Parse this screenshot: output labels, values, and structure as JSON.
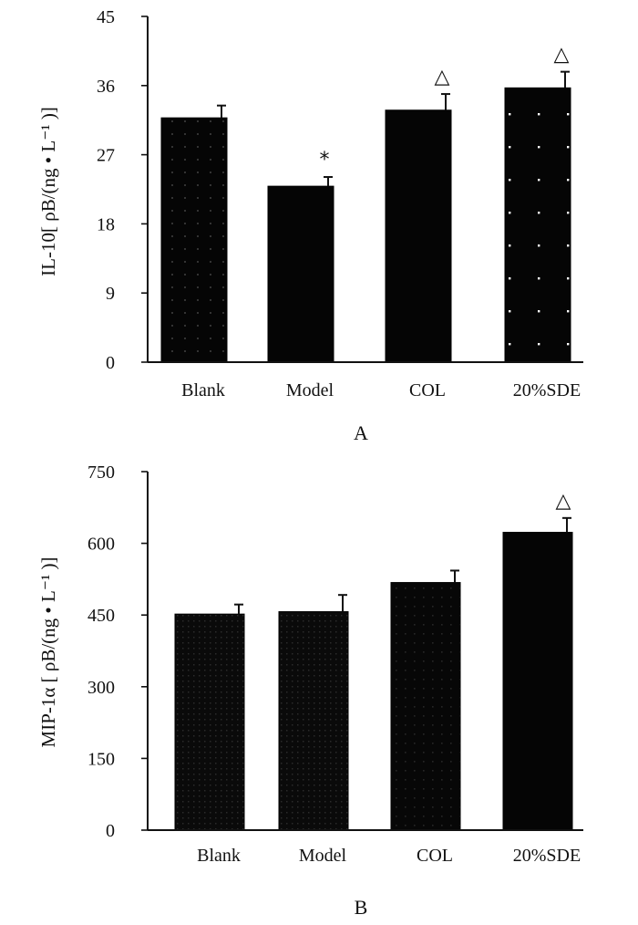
{
  "chart_data": [
    {
      "type": "bar",
      "panel_label": "A",
      "ylabel": "IL-10[ ρB/(ng • L⁻¹ )]",
      "categories": [
        "Blank",
        "Model",
        "COL",
        "20%SDE"
      ],
      "values": [
        31.8,
        22.9,
        32.8,
        35.7
      ],
      "errors": [
        1.6,
        1.2,
        2.1,
        2.1
      ],
      "annotations": [
        "",
        "*",
        "△",
        "△"
      ],
      "ylim": [
        0,
        45
      ],
      "yticks": [
        "0",
        "9",
        "18",
        "27",
        "36",
        "45"
      ]
    },
    {
      "type": "bar",
      "panel_label": "B",
      "ylabel": "MIP-1α [ ρB/(ng • L⁻¹ )]",
      "categories": [
        "Blank",
        "Model",
        "COL",
        "20%SDE"
      ],
      "values": [
        452,
        457,
        518,
        623
      ],
      "errors": [
        20,
        35,
        25,
        30
      ],
      "annotations": [
        "",
        "",
        "",
        "△"
      ],
      "ylim": [
        0,
        750
      ],
      "yticks": [
        "0",
        "150",
        "300",
        "450",
        "600",
        "750"
      ]
    }
  ]
}
